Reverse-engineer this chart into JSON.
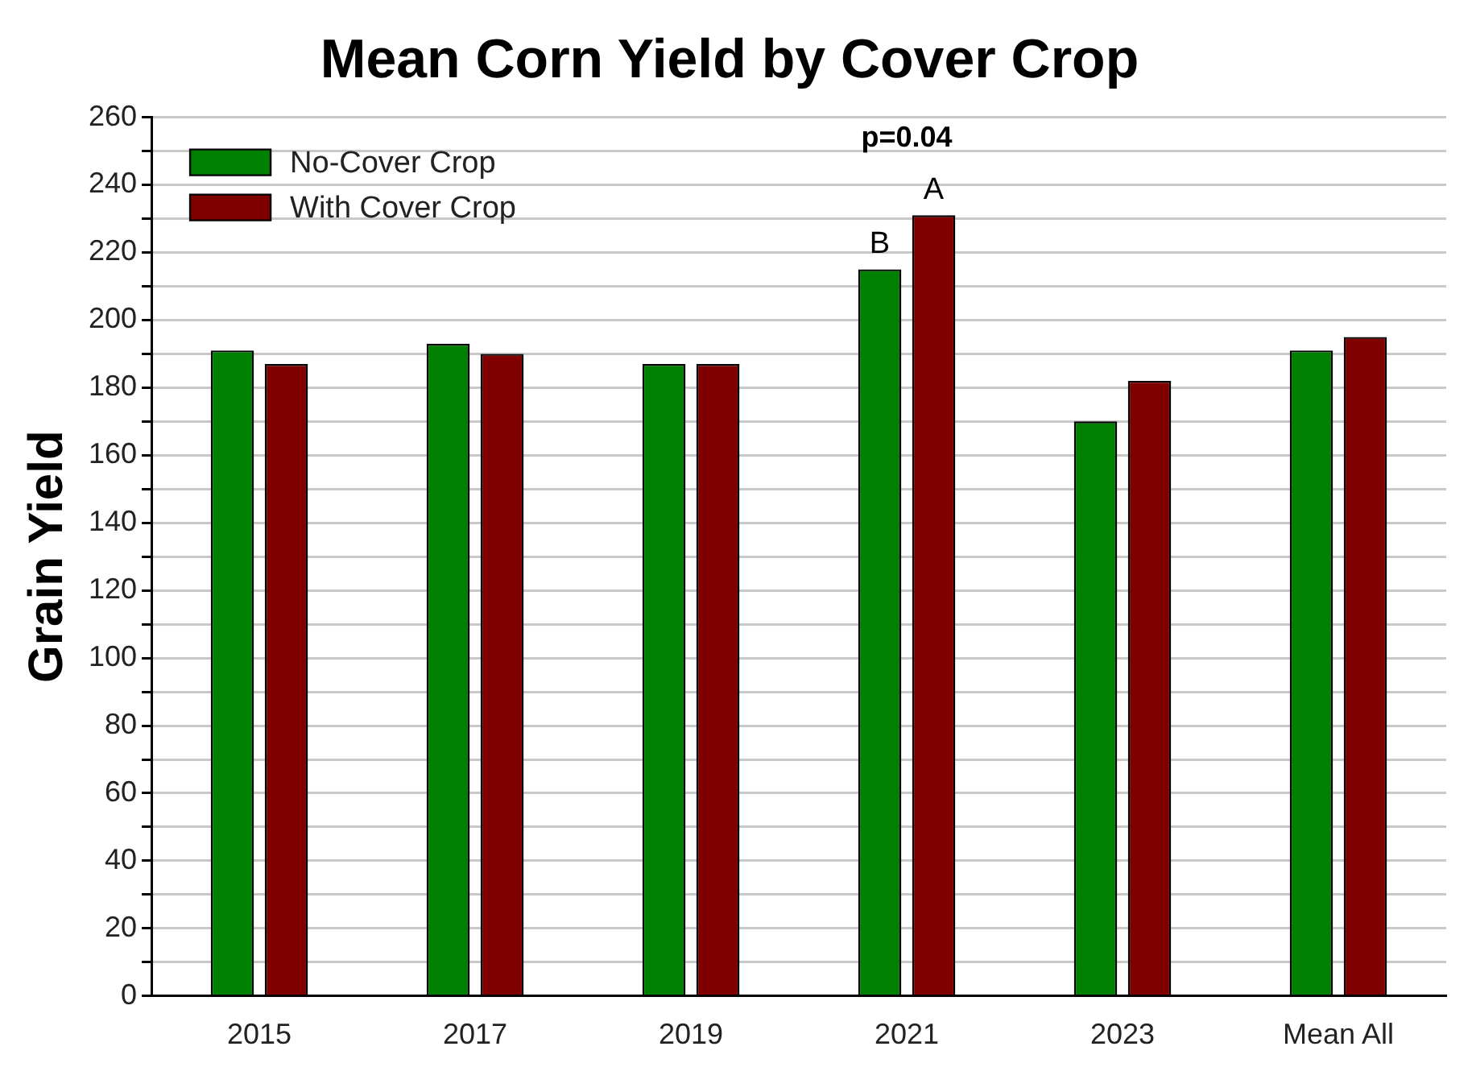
{
  "chart_data": {
    "type": "bar",
    "title": "Mean Corn Yield by Cover Crop",
    "ylabel": "Grain Yield",
    "categories": [
      "2015",
      "2017",
      "2019",
      "2021",
      "2023",
      "Mean All"
    ],
    "series": [
      {
        "name": "No-Cover Crop",
        "color": "#008000",
        "values": [
          191,
          193,
          187,
          215,
          170,
          191
        ],
        "value_labels": [
          null,
          null,
          null,
          "B",
          null,
          null
        ]
      },
      {
        "name": "With Cover Crop",
        "color": "#800000",
        "values": [
          187,
          190,
          187,
          231,
          182,
          195
        ],
        "value_labels": [
          null,
          null,
          null,
          "A",
          null,
          null
        ]
      }
    ],
    "ylim": [
      0,
      260
    ],
    "yticks": [
      0,
      {
        "value": 10,
        "label": null
      },
      20,
      {
        "value": 30,
        "label": null
      },
      40,
      {
        "value": 50,
        "label": null
      },
      60,
      {
        "value": 70,
        "label": null
      },
      80,
      {
        "value": 90,
        "label": null
      },
      100,
      {
        "value": 110,
        "label": null
      },
      120,
      {
        "value": 130,
        "label": null
      },
      140,
      {
        "value": 150,
        "label": null
      },
      160,
      {
        "value": 170,
        "label": null
      },
      180,
      {
        "value": 190,
        "label": null
      },
      200,
      {
        "value": 210,
        "label": null
      },
      220,
      {
        "value": 230,
        "label": null
      },
      240,
      {
        "value": 250,
        "label": null
      },
      260
    ],
    "annotations": [
      "p=0.04"
    ],
    "grid": "y",
    "legend": "top left"
  }
}
